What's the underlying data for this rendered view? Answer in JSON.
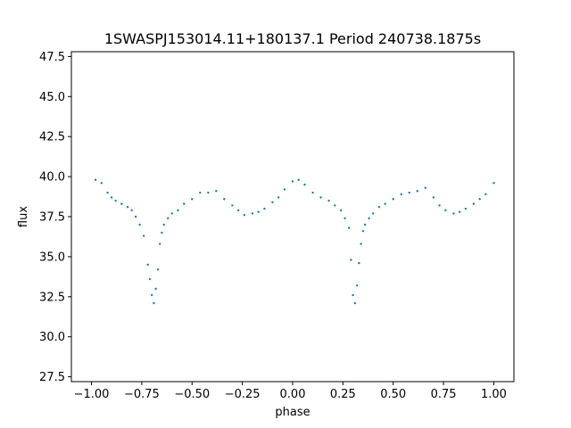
{
  "chart_data": {
    "type": "scatter",
    "title": "1SWASPJ153014.11+180137.1 Period 240738.1875s",
    "xlabel": "phase",
    "ylabel": "flux",
    "xlim": [
      -1.1,
      1.1
    ],
    "ylim": [
      27.2,
      47.8
    ],
    "x_ticks": [
      -1.0,
      -0.75,
      -0.5,
      -0.25,
      0.0,
      0.25,
      0.5,
      0.75,
      1.0
    ],
    "x_tick_labels": [
      "−1.00",
      "−0.75",
      "−0.50",
      "−0.25",
      "0.00",
      "0.25",
      "0.50",
      "0.75",
      "1.00"
    ],
    "y_ticks": [
      27.5,
      30.0,
      32.5,
      35.0,
      37.5,
      40.0,
      42.5,
      45.0,
      47.5
    ],
    "y_tick_labels": [
      "27.5",
      "30.0",
      "32.5",
      "35.0",
      "37.5",
      "40.0",
      "42.5",
      "45.0",
      "47.5"
    ],
    "grid": false,
    "marker_color": "#1f77b4",
    "series": [
      {
        "x": [
          -0.98,
          -0.95,
          -0.92,
          -0.9,
          -0.88,
          -0.85,
          -0.82,
          -0.8,
          -0.78,
          -0.76,
          -0.74,
          -0.72,
          -0.71,
          -0.7,
          -0.69,
          -0.68,
          -0.67,
          -0.66,
          -0.65,
          -0.64,
          -0.62,
          -0.6,
          -0.57,
          -0.54,
          -0.5,
          -0.46,
          -0.42,
          -0.38,
          -0.34,
          -0.3,
          -0.27,
          -0.24,
          -0.2,
          -0.17,
          -0.14,
          -0.1,
          -0.07,
          -0.04,
          0.0,
          0.03,
          0.06,
          0.1,
          0.14,
          0.18,
          0.21,
          0.24,
          0.26,
          0.28,
          0.29,
          0.3,
          0.31,
          0.32,
          0.33,
          0.34,
          0.35,
          0.36,
          0.38,
          0.4,
          0.43,
          0.46,
          0.5,
          0.54,
          0.58,
          0.62,
          0.66,
          0.7,
          0.73,
          0.76,
          0.8,
          0.83,
          0.86,
          0.9,
          0.93,
          0.96,
          1.0
        ],
        "y": [
          39.8,
          39.6,
          39.0,
          38.7,
          38.5,
          38.3,
          38.1,
          37.9,
          37.5,
          37.0,
          36.3,
          34.5,
          33.6,
          32.6,
          32.1,
          33.0,
          34.2,
          35.8,
          36.5,
          37.0,
          37.4,
          37.7,
          37.9,
          38.3,
          38.6,
          39.0,
          39.0,
          39.1,
          38.6,
          38.2,
          37.9,
          37.6,
          37.7,
          37.8,
          38.0,
          38.4,
          38.7,
          39.2,
          39.7,
          39.8,
          39.5,
          39.0,
          38.7,
          38.5,
          38.2,
          37.9,
          37.4,
          36.8,
          34.8,
          32.6,
          32.1,
          33.2,
          34.6,
          35.8,
          36.6,
          37.0,
          37.4,
          37.7,
          38.1,
          38.3,
          38.6,
          38.9,
          39.0,
          39.1,
          39.3,
          38.7,
          38.2,
          37.9,
          37.7,
          37.8,
          38.0,
          38.3,
          38.6,
          38.9,
          39.6
        ]
      }
    ]
  }
}
